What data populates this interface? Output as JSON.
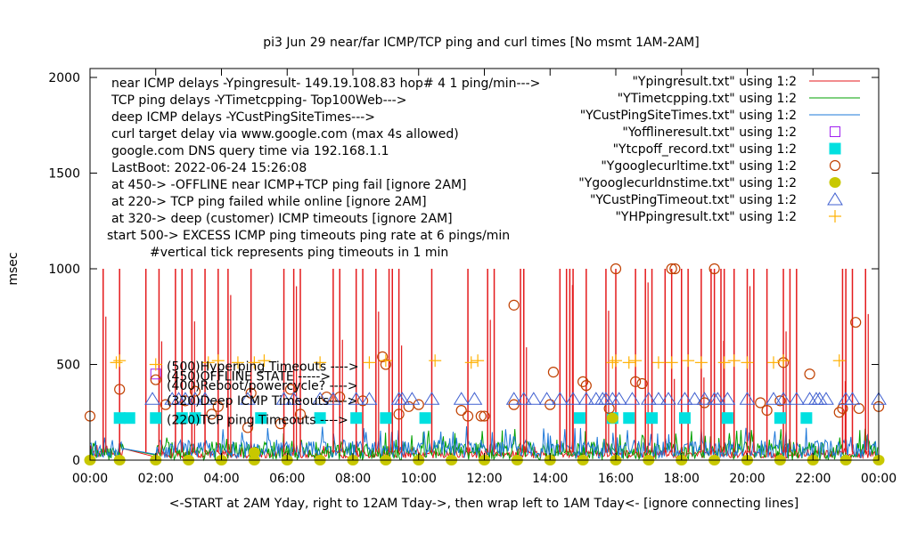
{
  "chart_data": {
    "type": "line",
    "title": "pi3 Jun 29  near/far ICMP/TCP ping and curl times [No msmt  1AM-2AM]",
    "xlabel": "<-START at 2AM Yday, right to 12AM Tday->, then wrap left to 1AM Tday<- [ignore connecting lines]",
    "ylabel": "msec",
    "xlim": [
      0,
      24
    ],
    "ylim": [
      0,
      2050
    ],
    "x_ticks": [
      0,
      2,
      4,
      6,
      8,
      10,
      12,
      14,
      16,
      18,
      20,
      22,
      24
    ],
    "x_tick_labels": [
      "00:00",
      "02:00",
      "04:00",
      "06:00",
      "08:00",
      "10:00",
      "12:00",
      "14:00",
      "16:00",
      "18:00",
      "20:00",
      "22:00",
      "00:00"
    ],
    "y_ticks": [
      0,
      500,
      1000,
      1500,
      2000
    ],
    "y_tick_labels": [
      "0",
      "500",
      "1000",
      "1500",
      "2000"
    ],
    "grid": false,
    "legend_position": "top-right",
    "annotations_top_left": [
      "near ICMP delays -Ypingresult- 149.19.108.83 hop# 4 1 ping/min--->",
      "TCP ping delays -YTimetcpping- Top100Web--->",
      "deep ICMP delays -YCustPingSiteTimes--->",
      "curl target delay via www.google.com (max 4s allowed)",
      "google.com DNS query time via 192.168.1.1",
      "LastBoot: 2022-06-24 15:26:08",
      "at 450-> -OFFLINE near ICMP+TCP ping fail [ignore 2AM]",
      "at 220-> TCP ping failed while online [ignore 2AM]",
      "at 320-> deep (customer) ICMP timeouts [ignore 2AM]",
      "start 500-> EXCESS ICMP ping timeouts ping rate at 6 pings/min",
      "#vertical tick represents ping timeouts in 1 min"
    ],
    "level_labels": [
      {
        "text": "(500)Hyperping Timeouts ---->",
        "y": 500
      },
      {
        "text": "(450)OFFLINE STATE ----->",
        "y": 450
      },
      {
        "text": "(400)Reboot/powercycle? ---->",
        "y": 400
      },
      {
        "text": "(320)Deep ICMP Timeouts---->",
        "y": 320
      },
      {
        "text": "(220)TCP ping Timeouts ---->",
        "y": 220
      }
    ],
    "series": [
      {
        "name": "\"Ypingresult.txt\" using 1:2",
        "style": "line",
        "color": "#e41a1c",
        "baseline_ms": [
          10,
          60
        ],
        "spikes_hours": [
          0.4,
          0.9,
          1.7,
          2.1,
          2.6,
          2.8,
          3.1,
          3.5,
          3.9,
          4.2,
          4.9,
          5.9,
          6.2,
          6.4,
          7.4,
          7.6,
          8.1,
          8.3,
          8.7,
          9.1,
          9.2,
          9.4,
          10.4,
          11.5,
          12.1,
          12.3,
          13.1,
          13.2,
          14.3,
          14.5,
          14.6,
          14.7,
          15.1,
          15.7,
          16.0,
          16.6,
          16.9,
          17.1,
          17.5,
          17.7,
          18.0,
          18.2,
          18.6,
          18.9,
          19.0,
          19.2,
          19.3,
          19.6,
          20.0,
          20.2,
          20.6,
          21.1,
          21.3,
          21.5,
          22.9,
          23.0,
          23.2,
          23.6
        ],
        "spike_ms": 1000
      },
      {
        "name": "\"YTimetcpping.txt\" using 1:2",
        "style": "line",
        "color": "#00a000",
        "baseline_ms": [
          0,
          120
        ]
      },
      {
        "name": "\"YCustPingSiteTimes.txt\" using 1:2",
        "style": "line",
        "color": "#1e78d8",
        "baseline_ms": [
          10,
          130
        ]
      },
      {
        "name": "\"Yofflineresult.txt\" using 1:2",
        "style": "open-square",
        "color": "#a020f0",
        "points": [
          [
            2.0,
            450
          ]
        ]
      },
      {
        "name": "\"Ytcpoff_record.txt\" using 1:2",
        "style": "filled-square",
        "color": "#00e0e0",
        "points": [
          [
            0.9,
            220
          ],
          [
            1.2,
            220
          ],
          [
            2.0,
            220
          ],
          [
            2.8,
            220
          ],
          [
            3.2,
            220
          ],
          [
            5.2,
            220
          ],
          [
            7.0,
            220
          ],
          [
            8.1,
            220
          ],
          [
            9.0,
            220
          ],
          [
            10.2,
            220
          ],
          [
            14.9,
            220
          ],
          [
            15.9,
            220
          ],
          [
            16.4,
            220
          ],
          [
            17.1,
            220
          ],
          [
            18.1,
            220
          ],
          [
            19.4,
            220
          ],
          [
            21.0,
            220
          ],
          [
            21.8,
            220
          ]
        ]
      },
      {
        "name": "\"Ygooglecurltime.txt\" using 1:2",
        "style": "open-circle",
        "color": "#c04000",
        "points": [
          [
            0.0,
            230
          ],
          [
            0.9,
            370
          ],
          [
            2.0,
            420
          ],
          [
            2.3,
            290
          ],
          [
            2.9,
            310
          ],
          [
            3.2,
            360
          ],
          [
            3.7,
            240
          ],
          [
            3.9,
            280
          ],
          [
            4.8,
            170
          ],
          [
            4.9,
            350
          ],
          [
            5.8,
            190
          ],
          [
            6.1,
            370
          ],
          [
            6.4,
            240
          ],
          [
            7.2,
            330
          ],
          [
            7.6,
            330
          ],
          [
            8.3,
            310
          ],
          [
            8.9,
            540
          ],
          [
            9.0,
            500
          ],
          [
            9.4,
            240
          ],
          [
            9.7,
            280
          ],
          [
            10.0,
            290
          ],
          [
            11.3,
            260
          ],
          [
            11.5,
            230
          ],
          [
            11.9,
            230
          ],
          [
            12.0,
            230
          ],
          [
            12.9,
            810
          ],
          [
            12.9,
            290
          ],
          [
            14.1,
            460
          ],
          [
            14.0,
            290
          ],
          [
            15.0,
            410
          ],
          [
            15.1,
            390
          ],
          [
            15.8,
            270
          ],
          [
            16.0,
            1000
          ],
          [
            16.6,
            410
          ],
          [
            16.8,
            400
          ],
          [
            17.7,
            1000
          ],
          [
            17.8,
            1000
          ],
          [
            18.7,
            300
          ],
          [
            19.0,
            1000
          ],
          [
            20.4,
            300
          ],
          [
            20.6,
            260
          ],
          [
            21.0,
            310
          ],
          [
            21.1,
            510
          ],
          [
            21.9,
            450
          ],
          [
            22.8,
            250
          ],
          [
            22.9,
            270
          ],
          [
            23.3,
            720
          ],
          [
            23.4,
            270
          ],
          [
            24.0,
            280
          ]
        ]
      },
      {
        "name": "\"Ygooglecurldnstime.txt\" using 1:2",
        "style": "filled-circle",
        "color": "#c8c800",
        "points": [
          [
            0.0,
            0
          ],
          [
            0.9,
            0
          ],
          [
            2.0,
            0
          ],
          [
            3.0,
            0
          ],
          [
            4.0,
            0
          ],
          [
            5.0,
            0
          ],
          [
            6.0,
            0
          ],
          [
            7.0,
            0
          ],
          [
            8.0,
            0
          ],
          [
            9.0,
            0
          ],
          [
            10.0,
            0
          ],
          [
            11.0,
            0
          ],
          [
            12.0,
            0
          ],
          [
            13.0,
            0
          ],
          [
            14.0,
            0
          ],
          [
            15.0,
            0
          ],
          [
            16.0,
            0
          ],
          [
            17.0,
            0
          ],
          [
            18.0,
            0
          ],
          [
            19.0,
            0
          ],
          [
            20.0,
            0
          ],
          [
            21.0,
            0
          ],
          [
            22.0,
            0
          ],
          [
            23.0,
            0
          ],
          [
            24.0,
            0
          ],
          [
            5.0,
            40
          ],
          [
            15.9,
            220
          ]
        ]
      },
      {
        "name": "\"YCustPingTimeout.txt\" using 1:2",
        "style": "open-triangle",
        "color": "#4060d0",
        "points": [
          [
            1.9,
            320
          ],
          [
            2.5,
            320
          ],
          [
            2.7,
            320
          ],
          [
            2.9,
            320
          ],
          [
            3.2,
            320
          ],
          [
            3.5,
            320
          ],
          [
            4.8,
            320
          ],
          [
            5.9,
            320
          ],
          [
            6.2,
            320
          ],
          [
            7.0,
            320
          ],
          [
            7.4,
            320
          ],
          [
            8.1,
            320
          ],
          [
            8.5,
            320
          ],
          [
            9.4,
            320
          ],
          [
            9.5,
            320
          ],
          [
            9.8,
            320
          ],
          [
            10.4,
            320
          ],
          [
            11.3,
            320
          ],
          [
            11.7,
            320
          ],
          [
            12.9,
            320
          ],
          [
            13.2,
            320
          ],
          [
            13.5,
            320
          ],
          [
            13.9,
            320
          ],
          [
            14.3,
            320
          ],
          [
            14.7,
            320
          ],
          [
            15.1,
            320
          ],
          [
            15.4,
            320
          ],
          [
            15.6,
            320
          ],
          [
            15.7,
            320
          ],
          [
            15.9,
            320
          ],
          [
            16.1,
            320
          ],
          [
            16.5,
            320
          ],
          [
            17.0,
            320
          ],
          [
            17.3,
            320
          ],
          [
            17.6,
            320
          ],
          [
            18.1,
            320
          ],
          [
            18.4,
            320
          ],
          [
            18.7,
            320
          ],
          [
            19.0,
            320
          ],
          [
            19.1,
            320
          ],
          [
            19.4,
            320
          ],
          [
            20.0,
            320
          ],
          [
            20.8,
            320
          ],
          [
            21.1,
            320
          ],
          [
            21.5,
            320
          ],
          [
            21.9,
            320
          ],
          [
            22.1,
            320
          ],
          [
            22.2,
            320
          ],
          [
            22.4,
            320
          ],
          [
            23.0,
            320
          ],
          [
            23.2,
            320
          ],
          [
            24.0,
            320
          ]
        ]
      },
      {
        "name": "\"YHPpingresult.txt\" using 1:2",
        "style": "plus",
        "color": "#ffb000",
        "points": [
          [
            0.8,
            510
          ],
          [
            0.9,
            520
          ],
          [
            2.0,
            500
          ],
          [
            3.6,
            510
          ],
          [
            3.9,
            520
          ],
          [
            4.5,
            510
          ],
          [
            5.0,
            510
          ],
          [
            5.3,
            520
          ],
          [
            7.0,
            510
          ],
          [
            8.5,
            510
          ],
          [
            9.0,
            520
          ],
          [
            10.5,
            520
          ],
          [
            11.6,
            510
          ],
          [
            11.8,
            520
          ],
          [
            15.9,
            510
          ],
          [
            16.0,
            520
          ],
          [
            16.4,
            510
          ],
          [
            16.6,
            520
          ],
          [
            17.3,
            510
          ],
          [
            17.7,
            510
          ],
          [
            18.2,
            520
          ],
          [
            18.6,
            510
          ],
          [
            19.3,
            510
          ],
          [
            19.6,
            520
          ],
          [
            20.0,
            510
          ],
          [
            20.8,
            510
          ],
          [
            21.1,
            520
          ],
          [
            22.8,
            520
          ]
        ]
      }
    ]
  }
}
